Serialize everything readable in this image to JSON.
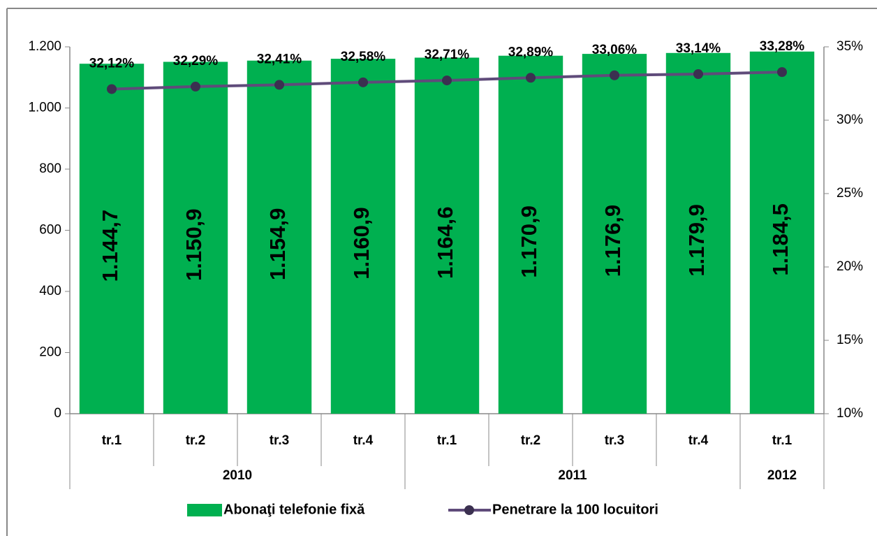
{
  "chart_data": {
    "type": "bar_line",
    "category_groups": [
      {
        "name": "2010",
        "categories": [
          "tr.1",
          "tr.2",
          "tr.3",
          "tr.4"
        ]
      },
      {
        "name": "2011",
        "categories": [
          "tr.1",
          "tr.2",
          "tr.3",
          "tr.4"
        ]
      },
      {
        "name": "2012",
        "categories": [
          "tr.1"
        ]
      }
    ],
    "series": [
      {
        "name": "Abonaţi telefonie fixă",
        "type": "bar",
        "color": "#00b050",
        "values": [
          1144.7,
          1150.9,
          1154.9,
          1160.9,
          1164.6,
          1170.9,
          1176.9,
          1179.9,
          1184.5
        ],
        "value_labels": [
          "1.144,7",
          "1.150,9",
          "1.154,9",
          "1.160,9",
          "1.164,6",
          "1.170,9",
          "1.176,9",
          "1.179,9",
          "1.184,5"
        ]
      },
      {
        "name": "Penetrare la 100 locuitori",
        "type": "line",
        "axis": "y2",
        "color": "#5f4b7a",
        "values": [
          32.12,
          32.29,
          32.41,
          32.58,
          32.71,
          32.89,
          33.06,
          33.14,
          33.28
        ],
        "value_labels": [
          "32,12%",
          "32,29%",
          "32,41%",
          "32,58%",
          "32,71%",
          "32,89%",
          "33,06%",
          "33,14%",
          "33,28%"
        ]
      }
    ],
    "ylim": [
      0,
      1200
    ],
    "yticks": [
      0,
      200,
      400,
      600,
      800,
      {
        "value": 1000,
        "label": "1.000"
      },
      {
        "value": 1200,
        "label": "1.200"
      }
    ],
    "y2lim": [
      10,
      35
    ],
    "y2ticks": [
      {
        "value": 10,
        "label": "10%"
      },
      {
        "value": 15,
        "label": "15%"
      },
      {
        "value": 20,
        "label": "20%"
      },
      {
        "value": 25,
        "label": "25%"
      },
      {
        "value": 30,
        "label": "30%"
      },
      {
        "value": 35,
        "label": "35%"
      }
    ],
    "legend": "bottom"
  }
}
